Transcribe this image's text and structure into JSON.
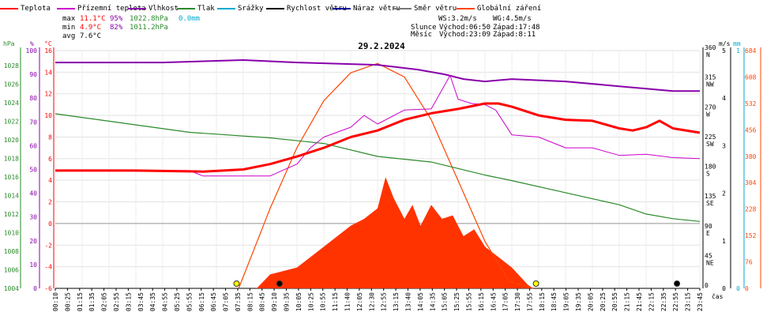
{
  "chart_data": {
    "type": "line",
    "title": "29.2.2024",
    "xlabel": "čas",
    "legend": [
      {
        "label": "Teplota",
        "color": "#ff0000"
      },
      {
        "label": "Přízemní teplota",
        "color": "#cc00cc"
      },
      {
        "label": "Vlhkost",
        "color": "#8800aa"
      },
      {
        "label": "Tlak",
        "color": "#2a8a2a"
      },
      {
        "label": "Srážky",
        "color": "#00aacc"
      },
      {
        "label": "Rychlost větru",
        "color": "#000000"
      },
      {
        "label": "Náraz větru",
        "color": "#000099"
      },
      {
        "label": "Směr větru",
        "color": "#777777"
      },
      {
        "label": "Globální záření",
        "color": "#ff4400"
      }
    ],
    "stats": {
      "max": {
        "label": "max",
        "temp": "11.1°C",
        "hum": "95%",
        "press": "1022.8hPa",
        "rain": "0.0mm"
      },
      "min": {
        "label": "min",
        "temp": "4.9°C",
        "hum": "82%",
        "press": "1011.2hPa"
      },
      "avg": {
        "label": "avg",
        "temp": "7.6°C"
      }
    },
    "wind_info": {
      "ws": "WS:3.2m/s",
      "wg": "WG:4.5m/s"
    },
    "sun": {
      "label": "Slunce",
      "rise": "Východ:06:50",
      "set": "Západ:17:48"
    },
    "moon": {
      "label": "Měsíc",
      "rise": "Východ:23:09",
      "set": "Západ:8:11"
    },
    "axes": {
      "press": {
        "unit": "hPa",
        "ticks": [
          "1028",
          "1026",
          "1024",
          "1022",
          "1020",
          "1018",
          "1016",
          "1014",
          "1012",
          "1010",
          "1008",
          "1006",
          "1004"
        ],
        "range": [
          1004,
          1029.6
        ]
      },
      "hum": {
        "unit": "%",
        "ticks": [
          "100",
          "90",
          "80",
          "70",
          "60",
          "50",
          "40",
          "30",
          "20",
          "10",
          "0"
        ],
        "range": [
          0,
          100
        ]
      },
      "temp": {
        "unit": "°C",
        "ticks": [
          "16",
          "14",
          "12",
          "10",
          "8",
          "6",
          "4",
          "2",
          "0",
          "-2",
          "-4",
          "-6"
        ],
        "range": [
          -6,
          16
        ]
      },
      "dir": {
        "ticks": [
          "360",
          "315",
          "270",
          "225",
          "180",
          "135",
          "90",
          "45",
          "0"
        ],
        "labels": [
          "N",
          "NW",
          "W",
          "SW",
          "S",
          "SE",
          "E",
          "NE",
          ""
        ],
        "range": [
          0,
          360
        ]
      },
      "speed": {
        "unit": "m/s",
        "ticks": [
          "5",
          "4",
          "3",
          "2",
          "1",
          "0"
        ],
        "range": [
          0,
          5
        ]
      },
      "rain": {
        "unit": "mm",
        "ticks": [
          "1",
          "0"
        ],
        "range": [
          0,
          1
        ]
      },
      "rad": {
        "ticks": [
          "684",
          "608",
          "532",
          "456",
          "380",
          "304",
          "228",
          "152",
          "76",
          "0"
        ],
        "range": [
          0,
          684
        ]
      }
    },
    "x_ticks": [
      "00:10",
      "00:25",
      "01:15",
      "01:35",
      "02:05",
      "02:55",
      "03:15",
      "03:45",
      "04:35",
      "04:55",
      "05:25",
      "05:55",
      "06:15",
      "06:45",
      "07:05",
      "07:35",
      "08:15",
      "08:45",
      "09:10",
      "09:35",
      "10:05",
      "10:25",
      "10:55",
      "11:15",
      "11:40",
      "12:05",
      "12:30",
      "12:55",
      "13:15",
      "13:40",
      "14:05",
      "14:35",
      "15:05",
      "15:25",
      "15:55",
      "16:15",
      "16:45",
      "17:05",
      "17:30",
      "17:55",
      "18:15",
      "18:45",
      "19:05",
      "19:35",
      "20:05",
      "20:25",
      "20:55",
      "21:15",
      "21:45",
      "22:15",
      "22:35",
      "22:55",
      "23:15",
      "23:45"
    ],
    "series": {
      "temperature": [
        [
          0,
          4.9
        ],
        [
          3,
          4.9
        ],
        [
          5.5,
          4.8
        ],
        [
          7,
          5.0
        ],
        [
          8,
          5.5
        ],
        [
          9,
          6.2
        ],
        [
          10,
          7.0
        ],
        [
          11,
          8.0
        ],
        [
          12,
          8.6
        ],
        [
          13,
          9.6
        ],
        [
          14,
          10.2
        ],
        [
          15,
          10.6
        ],
        [
          16,
          11.1
        ],
        [
          16.5,
          11.1
        ],
        [
          17,
          10.8
        ],
        [
          18,
          10.0
        ],
        [
          19,
          9.6
        ],
        [
          20,
          9.5
        ],
        [
          21,
          8.8
        ],
        [
          21.5,
          8.6
        ],
        [
          22,
          8.9
        ],
        [
          22.5,
          9.5
        ],
        [
          23,
          8.8
        ],
        [
          24,
          8.4
        ]
      ],
      "ground_temp": [
        [
          0,
          4.9
        ],
        [
          5,
          4.9
        ],
        [
          5.5,
          4.4
        ],
        [
          8,
          4.4
        ],
        [
          9,
          5.5
        ],
        [
          9.5,
          7.0
        ],
        [
          10,
          8.0
        ],
        [
          11,
          8.9
        ],
        [
          11.5,
          10.0
        ],
        [
          12,
          9.2
        ],
        [
          13,
          10.5
        ],
        [
          14,
          10.6
        ],
        [
          14.7,
          13.7
        ],
        [
          15,
          11.5
        ],
        [
          15.5,
          11.1
        ],
        [
          16,
          11.0
        ],
        [
          16.4,
          10.5
        ],
        [
          17,
          8.2
        ],
        [
          18,
          8.0
        ],
        [
          19,
          7.0
        ],
        [
          20,
          7.0
        ],
        [
          21,
          6.3
        ],
        [
          22,
          6.4
        ],
        [
          23,
          6.1
        ],
        [
          24,
          6.0
        ]
      ],
      "humidity": [
        [
          0,
          95
        ],
        [
          2,
          95
        ],
        [
          4,
          95
        ],
        [
          7,
          96
        ],
        [
          9,
          95
        ],
        [
          12,
          94
        ],
        [
          13.5,
          92
        ],
        [
          14.5,
          90
        ],
        [
          15.2,
          88
        ],
        [
          16,
          87
        ],
        [
          17,
          88
        ],
        [
          19,
          87
        ],
        [
          21,
          85
        ],
        [
          22,
          84
        ],
        [
          23,
          83
        ],
        [
          24,
          83
        ]
      ],
      "pressure": [
        [
          0,
          1022.8
        ],
        [
          2,
          1022.0
        ],
        [
          5,
          1020.8
        ],
        [
          8,
          1020.2
        ],
        [
          10,
          1019.6
        ],
        [
          12,
          1018.2
        ],
        [
          14,
          1017.6
        ],
        [
          16,
          1016.2
        ],
        [
          17,
          1015.6
        ],
        [
          19,
          1014.3
        ],
        [
          21,
          1013.0
        ],
        [
          22,
          1012.0
        ],
        [
          23,
          1011.5
        ],
        [
          24,
          1011.2
        ]
      ],
      "radiation_curve": [
        [
          6.83,
          0
        ],
        [
          8,
          230
        ],
        [
          9,
          405
        ],
        [
          10,
          540
        ],
        [
          11,
          620
        ],
        [
          12,
          647
        ],
        [
          13,
          608
        ],
        [
          14,
          485
        ],
        [
          15,
          310
        ],
        [
          16,
          135
        ],
        [
          16.9,
          20
        ],
        [
          17.8,
          0
        ]
      ],
      "radiation_area": [
        [
          7.5,
          0
        ],
        [
          8,
          40
        ],
        [
          9,
          60
        ],
        [
          10,
          120
        ],
        [
          10.5,
          150
        ],
        [
          11,
          180
        ],
        [
          11.5,
          200
        ],
        [
          12,
          230
        ],
        [
          12.3,
          320
        ],
        [
          12.6,
          260
        ],
        [
          13,
          200
        ],
        [
          13.3,
          240
        ],
        [
          13.6,
          180
        ],
        [
          14,
          240
        ],
        [
          14.4,
          200
        ],
        [
          14.8,
          210
        ],
        [
          15.2,
          150
        ],
        [
          15.6,
          170
        ],
        [
          16,
          120
        ],
        [
          16.5,
          90
        ],
        [
          17,
          60
        ],
        [
          17.6,
          10
        ],
        [
          17.8,
          0
        ]
      ]
    },
    "markers": [
      {
        "x": 6.75,
        "kind": "sun-rise"
      },
      {
        "x": 17.9,
        "kind": "sun-set"
      },
      {
        "x": 8.35,
        "kind": "moon-set"
      },
      {
        "x": 23.15,
        "kind": "moon-rise"
      }
    ]
  }
}
